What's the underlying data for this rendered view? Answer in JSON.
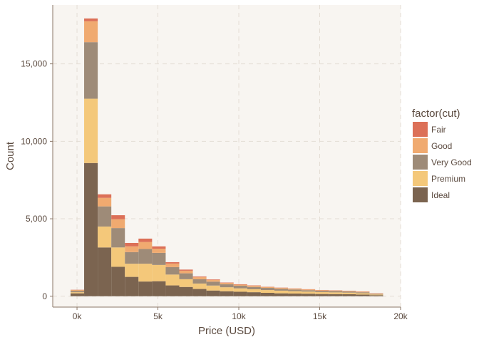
{
  "chart_data": {
    "type": "bar",
    "stacked": true,
    "xlabel": "Price (USD)",
    "ylabel": "Count",
    "xlim": [
      -1500,
      20000
    ],
    "ylim": [
      -700,
      18800
    ],
    "x_ticks": [
      {
        "value": 0,
        "label": "0k"
      },
      {
        "value": 5000,
        "label": "5k"
      },
      {
        "value": 10000,
        "label": "10k"
      },
      {
        "value": 15000,
        "label": "15k"
      },
      {
        "value": 20000,
        "label": "20k"
      }
    ],
    "y_ticks": [
      {
        "value": 0,
        "label": "0"
      },
      {
        "value": 5000,
        "label": "5,000"
      },
      {
        "value": 10000,
        "label": "10,000"
      },
      {
        "value": 15000,
        "label": "15,000"
      }
    ],
    "grid": true,
    "legend_title": "factor(cut)",
    "legend_position": "right",
    "bin_edges": [
      -400,
      440,
      1280,
      2120,
      2960,
      3800,
      4640,
      5480,
      6320,
      7160,
      8000,
      8840,
      9680,
      10520,
      11360,
      12200,
      13040,
      13880,
      14720,
      15560,
      16400,
      17240,
      18080,
      18920
    ],
    "series": [
      {
        "name": "Ideal",
        "color": "#7b6450",
        "values": [
          190,
          8600,
          3150,
          1900,
          1250,
          950,
          970,
          700,
          600,
          470,
          370,
          320,
          290,
          260,
          220,
          190,
          175,
          165,
          145,
          140,
          135,
          110,
          70
        ]
      },
      {
        "name": "Premium",
        "color": "#f4c87a",
        "values": [
          70,
          4150,
          1350,
          1250,
          850,
          1150,
          1050,
          700,
          500,
          350,
          320,
          260,
          220,
          190,
          180,
          170,
          150,
          135,
          120,
          110,
          100,
          85,
          40
        ]
      },
      {
        "name": "Very Good",
        "color": "#9e8b78",
        "values": [
          90,
          3650,
          1300,
          1250,
          750,
          950,
          780,
          480,
          380,
          280,
          250,
          190,
          170,
          150,
          140,
          120,
          110,
          90,
          80,
          80,
          70,
          60,
          40
        ]
      },
      {
        "name": "Good",
        "color": "#f0aa70",
        "values": [
          60,
          1350,
          550,
          570,
          370,
          450,
          270,
          230,
          170,
          130,
          120,
          90,
          70,
          80,
          60,
          60,
          55,
          50,
          45,
          40,
          35,
          40,
          30
        ]
      },
      {
        "name": "Fair",
        "color": "#dc7058",
        "values": [
          12,
          180,
          230,
          260,
          220,
          220,
          150,
          90,
          70,
          40,
          30,
          25,
          25,
          20,
          15,
          15,
          15,
          15,
          15,
          15,
          15,
          15,
          10
        ]
      }
    ]
  }
}
